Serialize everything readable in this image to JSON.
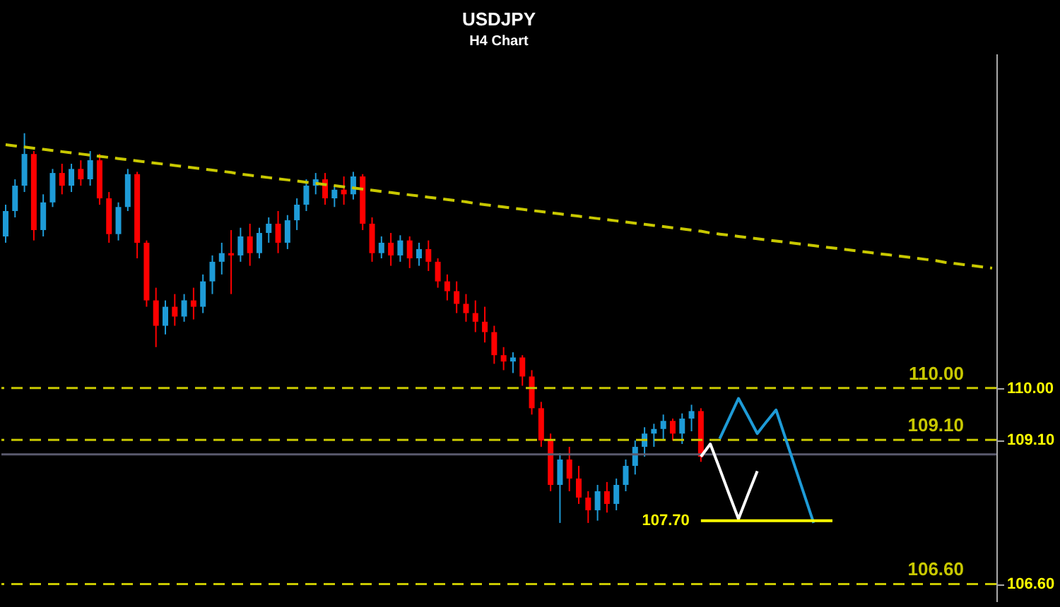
{
  "chart_data": {
    "type": "candlestick",
    "title": "USDJPY",
    "subtitle": "H4 Chart",
    "categories": [
      null,
      null,
      null,
      null,
      null,
      null,
      null,
      null,
      null,
      null,
      null,
      null,
      null,
      null,
      null,
      null,
      null,
      null,
      null,
      null,
      null,
      null,
      null,
      null,
      null,
      null,
      null,
      null,
      null,
      null,
      null,
      null,
      null,
      null,
      null,
      null,
      null,
      null,
      null,
      null,
      null,
      null,
      null,
      null,
      null,
      null,
      null,
      null,
      null,
      null,
      null,
      null,
      null,
      null,
      null,
      null,
      null,
      null,
      null,
      null,
      null,
      null,
      null,
      null,
      null,
      null,
      null,
      null,
      null,
      null,
      null,
      null,
      null,
      null,
      null,
      null,
      null,
      null,
      null,
      null,
      null,
      null,
      null,
      null,
      null,
      null,
      null,
      null,
      null,
      null,
      null,
      null,
      null,
      null,
      null,
      null,
      null,
      null,
      null,
      null,
      null,
      null,
      null,
      null,
      null,
      null
    ],
    "ohlc": [
      [
        112.63,
        113.18,
        112.52,
        113.07
      ],
      [
        113.07,
        113.62,
        112.96,
        113.51
      ],
      [
        113.51,
        114.42,
        113.4,
        114.06
      ],
      [
        114.06,
        114.11,
        112.56,
        112.74
      ],
      [
        112.74,
        113.36,
        112.63,
        113.22
      ],
      [
        113.22,
        113.8,
        113.14,
        113.73
      ],
      [
        113.73,
        113.89,
        113.36,
        113.51
      ],
      [
        113.51,
        113.89,
        113.4,
        113.8
      ],
      [
        113.8,
        113.95,
        113.51,
        113.62
      ],
      [
        113.62,
        114.11,
        113.51,
        113.95
      ],
      [
        113.95,
        114.06,
        113.18,
        113.29
      ],
      [
        113.29,
        113.4,
        112.52,
        112.67
      ],
      [
        112.67,
        113.22,
        112.56,
        113.14
      ],
      [
        113.14,
        113.8,
        113.07,
        113.71
      ],
      [
        113.71,
        113.75,
        112.25,
        112.52
      ],
      [
        112.52,
        112.56,
        111.41,
        111.52
      ],
      [
        111.52,
        111.74,
        110.71,
        111.08
      ],
      [
        111.08,
        111.52,
        110.93,
        111.41
      ],
      [
        111.41,
        111.63,
        111.08,
        111.24
      ],
      [
        111.24,
        111.63,
        111.15,
        111.52
      ],
      [
        111.52,
        111.74,
        111.19,
        111.41
      ],
      [
        111.41,
        111.97,
        111.3,
        111.85
      ],
      [
        111.85,
        112.3,
        111.63,
        112.19
      ],
      [
        112.19,
        112.52,
        111.97,
        112.34
      ],
      [
        112.34,
        112.74,
        111.63,
        112.3
      ],
      [
        112.3,
        112.78,
        112.19,
        112.63
      ],
      [
        112.63,
        112.85,
        112.12,
        112.34
      ],
      [
        112.34,
        112.78,
        112.25,
        112.69
      ],
      [
        112.69,
        112.96,
        112.52,
        112.85
      ],
      [
        112.85,
        113.07,
        112.34,
        112.52
      ],
      [
        112.52,
        113.0,
        112.41,
        112.91
      ],
      [
        112.91,
        113.29,
        112.74,
        113.18
      ],
      [
        113.18,
        113.62,
        113.07,
        113.51
      ],
      [
        113.51,
        113.73,
        113.36,
        113.62
      ],
      [
        113.62,
        113.73,
        113.18,
        113.29
      ],
      [
        113.29,
        113.51,
        113.14,
        113.44
      ],
      [
        113.44,
        113.67,
        113.18,
        113.36
      ],
      [
        113.36,
        113.75,
        113.27,
        113.67
      ],
      [
        113.67,
        113.71,
        112.74,
        112.85
      ],
      [
        112.85,
        112.96,
        112.19,
        112.34
      ],
      [
        112.34,
        112.63,
        112.25,
        112.52
      ],
      [
        112.52,
        112.69,
        112.12,
        112.3
      ],
      [
        112.3,
        112.65,
        112.19,
        112.56
      ],
      [
        112.56,
        112.63,
        112.08,
        112.25
      ],
      [
        112.25,
        112.52,
        112.12,
        112.41
      ],
      [
        112.41,
        112.56,
        112.03,
        112.19
      ],
      [
        112.19,
        112.25,
        111.74,
        111.85
      ],
      [
        111.85,
        111.97,
        111.52,
        111.68
      ],
      [
        111.68,
        111.85,
        111.3,
        111.46
      ],
      [
        111.46,
        111.63,
        111.15,
        111.3
      ],
      [
        111.3,
        111.52,
        110.97,
        111.15
      ],
      [
        111.15,
        111.41,
        110.79,
        110.97
      ],
      [
        110.97,
        111.08,
        110.42,
        110.57
      ],
      [
        110.57,
        110.71,
        110.31,
        110.46
      ],
      [
        110.46,
        110.62,
        110.26,
        110.53
      ],
      [
        110.53,
        110.57,
        110.04,
        110.2
      ],
      [
        110.2,
        110.31,
        109.54,
        109.65
      ],
      [
        109.65,
        109.76,
        108.98,
        109.09
      ],
      [
        109.09,
        109.21,
        108.21,
        108.32
      ],
      [
        108.32,
        108.87,
        107.66,
        108.76
      ],
      [
        108.76,
        108.98,
        108.21,
        108.43
      ],
      [
        108.43,
        108.65,
        107.99,
        108.1
      ],
      [
        108.1,
        108.21,
        107.66,
        107.88
      ],
      [
        107.88,
        108.32,
        107.7,
        108.21
      ],
      [
        108.21,
        108.37,
        107.84,
        107.99
      ],
      [
        107.99,
        108.43,
        107.88,
        108.32
      ],
      [
        108.32,
        108.76,
        108.21,
        108.65
      ],
      [
        108.65,
        109.09,
        108.5,
        108.98
      ],
      [
        108.98,
        109.32,
        108.81,
        109.21
      ],
      [
        109.21,
        109.38,
        108.98,
        109.29
      ],
      [
        109.29,
        109.54,
        109.09,
        109.43
      ],
      [
        109.43,
        109.47,
        109.09,
        109.21
      ],
      [
        109.21,
        109.56,
        109.03,
        109.47
      ],
      [
        109.47,
        109.71,
        109.25,
        109.6
      ],
      [
        109.6,
        109.65,
        108.72,
        108.81
      ],
      null,
      null,
      null,
      null,
      null,
      null,
      null,
      null,
      null,
      null,
      null,
      null,
      null,
      null,
      null,
      null,
      null,
      null,
      null,
      null,
      null,
      null,
      null,
      null,
      null,
      null,
      null,
      null,
      null,
      null,
      null
    ],
    "colors": [
      "#1e9bd7",
      "#1e9bd7",
      "#1e9bd7",
      "#ff0000",
      "#1e9bd7",
      "#1e9bd7",
      "#ff0000",
      "#1e9bd7",
      "#ff0000",
      "#1e9bd7",
      "#ff0000",
      "#ff0000",
      "#1e9bd7",
      "#1e9bd7",
      "#ff0000",
      "#ff0000",
      "#ff0000",
      "#1e9bd7",
      "#ff0000",
      "#1e9bd7",
      "#ff0000",
      "#1e9bd7",
      "#1e9bd7",
      "#1e9bd7",
      "#ff0000",
      "#1e9bd7",
      "#ff0000",
      "#1e9bd7",
      "#1e9bd7",
      "#ff0000",
      "#1e9bd7",
      "#1e9bd7",
      "#1e9bd7",
      "#1e9bd7",
      "#ff0000",
      "#1e9bd7",
      "#ff0000",
      "#1e9bd7",
      "#ff0000",
      "#ff0000",
      "#1e9bd7",
      "#ff0000",
      "#1e9bd7",
      "#ff0000",
      "#1e9bd7",
      "#ff0000",
      "#ff0000",
      "#ff0000",
      "#ff0000",
      "#ff0000",
      "#ff0000",
      "#ff0000",
      "#ff0000",
      "#ff0000",
      "#1e9bd7",
      "#ff0000",
      "#ff0000",
      "#ff0000",
      "#ff0000",
      "#1e9bd7",
      "#ff0000",
      "#ff0000",
      "#ff0000",
      "#1e9bd7",
      "#ff0000",
      "#1e9bd7",
      "#1e9bd7",
      "#1e9bd7",
      "#1e9bd7",
      "#1e9bd7",
      "#1e9bd7",
      "#ff0000",
      "#1e9bd7",
      "#1e9bd7",
      "#ff0000",
      null,
      null,
      null,
      null,
      null,
      null,
      null,
      null,
      null,
      null,
      null,
      null,
      null,
      null,
      null,
      null,
      null,
      null,
      null,
      null,
      null,
      null,
      null,
      null,
      null,
      null,
      null,
      null,
      null,
      null,
      null
    ],
    "ylim": [
      106.3,
      115.8
    ],
    "yticks": [
      {
        "value": 110.0,
        "label": "110.00"
      },
      {
        "value": 109.1,
        "label": "109.10"
      },
      {
        "value": 106.6,
        "label": "106.60"
      }
    ],
    "tick_labels": "y",
    "series": [
      {
        "type": "line",
        "color": "#c8c800",
        "line_style": "dashed",
        "values": [
          114.22,
          114.2,
          114.18,
          114.16,
          114.14,
          114.12,
          114.1,
          114.08,
          114.06,
          114.04,
          114.02,
          114.0,
          113.98,
          113.96,
          113.94,
          113.92,
          113.9,
          113.88,
          113.86,
          113.84,
          113.82,
          113.8,
          113.78,
          113.76,
          113.74,
          113.71,
          113.69,
          113.67,
          113.65,
          113.63,
          113.61,
          113.59,
          113.57,
          113.55,
          113.53,
          113.51,
          113.49,
          113.47,
          113.45,
          113.43,
          113.41,
          113.39,
          113.37,
          113.35,
          113.33,
          113.31,
          113.29,
          113.27,
          113.25,
          113.23,
          113.2,
          113.18,
          113.16,
          113.14,
          113.12,
          113.1,
          113.08,
          113.06,
          113.04,
          113.02,
          113.0,
          112.98,
          112.96,
          112.94,
          112.92,
          112.9,
          112.88,
          112.86,
          112.84,
          112.82,
          112.8,
          112.78,
          112.76,
          112.74,
          112.72,
          112.69,
          112.67,
          112.65,
          112.63,
          112.61,
          112.59,
          112.57,
          112.55,
          112.53,
          112.51,
          112.49,
          112.47,
          112.45,
          112.43,
          112.41,
          112.39,
          112.37,
          112.35,
          112.33,
          112.31,
          112.29,
          112.27,
          112.25,
          112.23,
          112.21,
          112.18,
          112.16,
          112.14,
          112.12,
          112.1,
          112.08
        ]
      },
      {
        "type": "line",
        "color": "#1e9bd7",
        "line_style": "solid",
        "values": [
          null,
          null,
          null,
          null,
          null,
          null,
          null,
          null,
          null,
          null,
          null,
          null,
          null,
          null,
          null,
          null,
          null,
          null,
          null,
          null,
          null,
          null,
          null,
          null,
          null,
          null,
          null,
          null,
          null,
          null,
          null,
          null,
          null,
          null,
          null,
          null,
          null,
          null,
          null,
          null,
          null,
          null,
          null,
          null,
          null,
          null,
          null,
          null,
          null,
          null,
          null,
          null,
          null,
          null,
          null,
          null,
          null,
          null,
          null,
          null,
          null,
          null,
          null,
          null,
          null,
          null,
          null,
          null,
          null,
          null,
          null,
          null,
          null,
          null,
          null,
          null,
          109.12,
          109.47,
          109.82,
          109.52,
          109.21,
          109.42,
          109.62,
          109.13,
          108.64,
          108.15,
          107.66,
          null,
          null,
          null,
          null,
          null,
          null,
          null,
          null,
          null,
          null,
          null,
          null,
          null,
          null,
          null,
          null,
          null,
          null,
          null
        ]
      },
      {
        "type": "line",
        "color": "#ffffff",
        "line_style": "solid",
        "values": [
          null,
          null,
          null,
          null,
          null,
          null,
          null,
          null,
          null,
          null,
          null,
          null,
          null,
          null,
          null,
          null,
          null,
          null,
          null,
          null,
          null,
          null,
          null,
          null,
          null,
          null,
          null,
          null,
          null,
          null,
          null,
          null,
          null,
          null,
          null,
          null,
          null,
          null,
          null,
          null,
          null,
          null,
          null,
          null,
          null,
          null,
          null,
          null,
          null,
          null,
          null,
          null,
          null,
          null,
          null,
          null,
          null,
          null,
          null,
          null,
          null,
          null,
          null,
          null,
          null,
          null,
          null,
          null,
          null,
          null,
          null,
          null,
          null,
          null,
          108.81,
          109.03,
          108.6,
          108.16,
          107.73,
          108.15,
          108.56,
          null,
          null,
          null,
          null,
          null,
          null,
          null,
          null,
          null,
          null,
          null,
          null,
          null,
          null,
          null,
          null,
          null,
          null,
          null,
          null,
          null,
          null,
          null,
          null,
          null
        ]
      },
      {
        "type": "line",
        "color": "#ffff00",
        "line_style": "solid",
        "values": [
          null,
          null,
          null,
          null,
          null,
          null,
          null,
          null,
          null,
          null,
          null,
          null,
          null,
          null,
          null,
          null,
          null,
          null,
          null,
          null,
          null,
          null,
          null,
          null,
          null,
          null,
          null,
          null,
          null,
          null,
          null,
          null,
          null,
          null,
          null,
          null,
          null,
          null,
          null,
          null,
          null,
          null,
          null,
          null,
          null,
          null,
          null,
          null,
          null,
          null,
          null,
          null,
          null,
          null,
          null,
          null,
          null,
          null,
          null,
          null,
          null,
          null,
          null,
          null,
          null,
          null,
          null,
          null,
          null,
          null,
          null,
          null,
          null,
          null,
          107.7,
          107.7,
          107.7,
          107.7,
          107.7,
          107.7,
          107.7,
          107.7,
          107.7,
          107.7,
          107.7,
          107.7,
          107.7,
          107.7,
          107.7,
          null,
          null,
          null,
          null,
          null,
          null,
          null,
          null,
          null,
          null,
          null,
          null,
          null,
          null,
          null,
          null,
          null
        ]
      }
    ],
    "ref_lines": [
      {
        "axis": "y",
        "value": 110.0,
        "label": "110.00",
        "color": "#c8c800",
        "line_style": "dashed"
      },
      {
        "axis": "y",
        "value": 109.1,
        "label": "109.10",
        "color": "#c8c800",
        "line_style": "dashed"
      },
      {
        "axis": "y",
        "value": 106.6,
        "label": "106.60",
        "color": "#c8c800",
        "line_style": "dashed"
      },
      {
        "axis": "y",
        "value": 108.85,
        "color": "#5a5a6e",
        "line_style": "solid"
      }
    ],
    "annotations": [
      "107.70"
    ]
  }
}
